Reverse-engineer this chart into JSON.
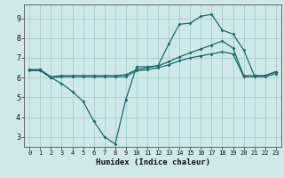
{
  "background_color": "#cfe9e9",
  "grid_color": "#a8cccc",
  "line_color": "#1a6b6b",
  "xlabel": "Humidex (Indice chaleur)",
  "xlim": [
    -0.5,
    23.5
  ],
  "ylim": [
    2.5,
    9.7
  ],
  "yticks": [
    3,
    4,
    5,
    6,
    7,
    8,
    9
  ],
  "xticks": [
    0,
    1,
    2,
    3,
    4,
    5,
    6,
    7,
    8,
    9,
    10,
    11,
    12,
    13,
    14,
    15,
    16,
    17,
    18,
    19,
    20,
    21,
    22,
    23
  ],
  "line1_x": [
    0,
    1,
    2,
    3,
    4,
    5,
    6,
    7,
    8,
    9,
    10,
    11,
    12,
    13,
    14,
    15,
    16,
    17,
    18,
    19,
    20,
    21,
    22,
    23
  ],
  "line1_y": [
    6.4,
    6.4,
    6.0,
    5.7,
    5.3,
    4.8,
    3.8,
    3.0,
    2.65,
    4.9,
    6.55,
    6.55,
    6.6,
    7.7,
    8.7,
    8.75,
    9.1,
    9.2,
    8.4,
    8.2,
    7.4,
    6.1,
    6.1,
    6.3
  ],
  "line2_x": [
    0,
    1,
    2,
    3,
    4,
    5,
    6,
    7,
    8,
    9,
    10,
    11,
    12,
    13,
    14,
    15,
    16,
    17,
    18,
    19,
    20,
    21,
    22,
    23
  ],
  "line2_y": [
    6.4,
    6.4,
    6.05,
    6.1,
    6.1,
    6.1,
    6.1,
    6.1,
    6.1,
    6.15,
    6.4,
    6.5,
    6.6,
    6.8,
    7.05,
    7.25,
    7.45,
    7.65,
    7.85,
    7.5,
    6.1,
    6.1,
    6.1,
    6.3
  ],
  "line3_x": [
    0,
    1,
    2,
    3,
    4,
    5,
    6,
    7,
    8,
    9,
    10,
    11,
    12,
    13,
    14,
    15,
    16,
    17,
    18,
    19,
    20,
    21,
    22,
    23
  ],
  "line3_y": [
    6.35,
    6.35,
    6.0,
    6.05,
    6.05,
    6.05,
    6.05,
    6.05,
    6.05,
    6.05,
    6.35,
    6.4,
    6.5,
    6.65,
    6.85,
    7.0,
    7.1,
    7.2,
    7.3,
    7.2,
    6.05,
    6.05,
    6.05,
    6.2
  ]
}
